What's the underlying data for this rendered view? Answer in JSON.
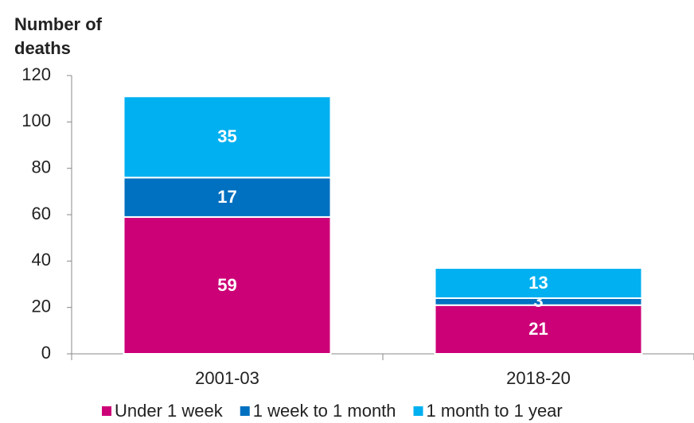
{
  "chart_data": {
    "type": "stacked_bar",
    "y_label": "Number of deaths",
    "categories": [
      "2001-03",
      "2018-20"
    ],
    "series": [
      {
        "name": "Under 1 week",
        "color": "#cc0077",
        "values": [
          59,
          21
        ]
      },
      {
        "name": "1 week to 1 month",
        "color": "#0070c0",
        "values": [
          17,
          3
        ]
      },
      {
        "name": "1 month to 1 year",
        "color": "#00b0f0",
        "values": [
          35,
          13
        ]
      }
    ],
    "ylim": [
      0,
      120
    ],
    "yticks": [
      0,
      20,
      40,
      60,
      80,
      100,
      120
    ],
    "grid": false,
    "legend": "bottom"
  }
}
